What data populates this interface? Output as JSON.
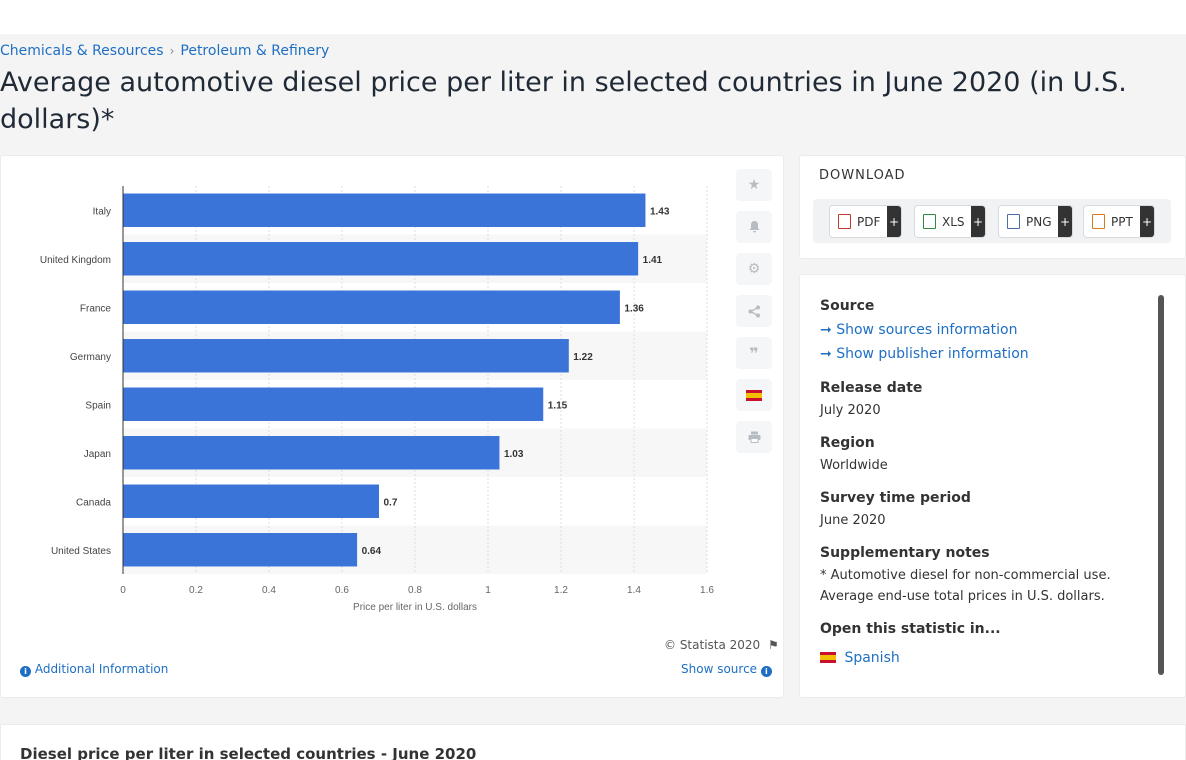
{
  "breadcrumb": [
    "Chemicals & Resources",
    "Petroleum & Refinery"
  ],
  "page_title": "Average automotive diesel price per liter in selected countries in June 2020 (in U.S. dollars)*",
  "chart_data": {
    "type": "bar",
    "orientation": "horizontal",
    "categories": [
      "Italy",
      "United Kingdom",
      "France",
      "Germany",
      "Spain",
      "Japan",
      "Canada",
      "United States"
    ],
    "values": [
      1.43,
      1.41,
      1.36,
      1.22,
      1.15,
      1.03,
      0.7,
      0.64
    ],
    "value_labels": [
      "1.43",
      "1.41",
      "1.36",
      "1.22",
      "1.15",
      "1.03",
      "0.7",
      "0.64"
    ],
    "xlabel": "Price per liter in U.S. dollars",
    "xlim": [
      0,
      1.6
    ],
    "xticks": [
      "0",
      "0.2",
      "0.4",
      "0.6",
      "0.8",
      "1",
      "1.2",
      "1.4",
      "1.6"
    ],
    "bar_color": "#3b74d8",
    "grid": true
  },
  "chart_footer": {
    "copyright": "© Statista 2020",
    "additional_info": "Additional Information",
    "show_source": "Show source"
  },
  "tools": [
    "star-icon",
    "bell-icon",
    "gear-icon",
    "share-icon",
    "quote-icon",
    "flag-spain-icon",
    "print-icon"
  ],
  "download": {
    "title": "DOWNLOAD",
    "formats": [
      "PDF",
      "XLS",
      "PNG",
      "PPT"
    ],
    "plus": "+"
  },
  "info": {
    "source_heading": "Source",
    "show_sources": "Show sources information",
    "show_publisher": "Show publisher information",
    "release_heading": "Release date",
    "release_value": "July 2020",
    "region_heading": "Region",
    "region_value": "Worldwide",
    "survey_heading": "Survey time period",
    "survey_value": "June 2020",
    "notes_heading": "Supplementary notes",
    "notes_value": "* Automotive diesel for non-commercial use. Average end-use total prices in U.S. dollars.",
    "open_heading": "Open this statistic in...",
    "open_spanish": "Spanish"
  },
  "bottom_title": "Diesel price per liter in selected countries - June 2020"
}
